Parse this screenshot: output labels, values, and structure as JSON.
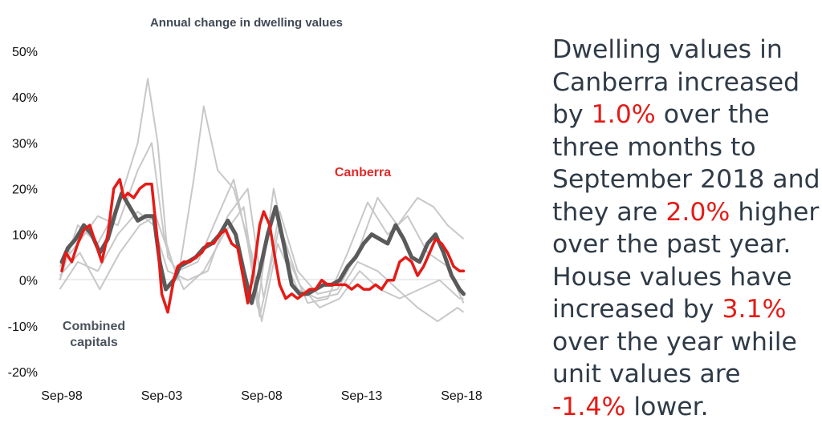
{
  "chart_data": {
    "type": "line",
    "title": "Annual change in dwelling values",
    "y_ticks": [
      "50%",
      "40%",
      "30%",
      "20%",
      "10%",
      "0%",
      "-10%",
      "-20%"
    ],
    "x_ticks": [
      "Sep-98",
      "Sep-03",
      "Sep-08",
      "Sep-13",
      "Sep-18"
    ],
    "ylim": [
      -20,
      50
    ],
    "xlim": [
      1998.5,
      2018.9
    ],
    "grid": false,
    "series_labels": {
      "canberra": "Canberra",
      "combined_1": "Combined",
      "combined_2": "capitals"
    },
    "colors": {
      "canberra": "#e41b17",
      "combined": "#5a5a5a",
      "other": "#c8c8c8"
    },
    "series": [
      {
        "key": "canberra",
        "x": [
          1998.7,
          1998.9,
          1999.2,
          1999.5,
          1999.8,
          2000.1,
          2000.4,
          2000.7,
          2001.0,
          2001.3,
          2001.6,
          2001.8,
          2002.0,
          2002.3,
          2002.6,
          2002.9,
          2003.2,
          2003.5,
          2003.7,
          2004.0,
          2004.3,
          2004.5,
          2004.8,
          2005.1,
          2005.4,
          2005.7,
          2006.0,
          2006.3,
          2006.6,
          2006.9,
          2007.2,
          2007.5,
          2007.8,
          2008.0,
          2008.3,
          2008.6,
          2008.8,
          2009.1,
          2009.4,
          2009.6,
          2009.9,
          2010.2,
          2010.5,
          2010.8,
          2011.1,
          2011.4,
          2011.7,
          2012.0,
          2012.3,
          2012.6,
          2012.9,
          2013.2,
          2013.5,
          2013.8,
          2014.1,
          2014.4,
          2014.7,
          2015.0,
          2015.3,
          2015.6,
          2015.9,
          2016.2,
          2016.5,
          2016.8,
          2017.1,
          2017.4,
          2017.7,
          2018.0,
          2018.3,
          2018.6,
          2018.8
        ],
        "y": [
          2,
          6,
          4,
          8,
          11,
          12,
          8,
          4,
          10,
          20,
          22,
          18,
          19,
          18,
          20,
          21,
          21,
          8,
          -3,
          -7,
          0,
          3,
          4,
          4,
          5,
          6,
          8,
          8,
          10,
          11,
          8,
          7,
          0,
          -5,
          2,
          12,
          15,
          12,
          4,
          -1,
          -4,
          -3,
          -4,
          -3,
          -2,
          -2,
          0,
          -1,
          -1,
          -1,
          -1,
          -2,
          -1,
          -2,
          -2,
          -1,
          -2,
          0,
          0,
          4,
          5,
          4,
          1,
          3,
          6,
          9,
          8,
          6,
          3,
          2,
          2
        ]
      },
      {
        "key": "combined",
        "x": [
          1998.7,
          1999.0,
          1999.4,
          1999.8,
          2000.2,
          2000.6,
          2001.0,
          2001.4,
          2001.7,
          2002.1,
          2002.5,
          2002.9,
          2003.3,
          2003.6,
          2003.9,
          2004.3,
          2004.6,
          2005.0,
          2005.4,
          2005.8,
          2006.2,
          2006.6,
          2007.0,
          2007.4,
          2007.8,
          2008.2,
          2008.6,
          2009.0,
          2009.4,
          2009.8,
          2010.2,
          2010.6,
          2011.0,
          2011.4,
          2011.8,
          2012.2,
          2012.6,
          2013.0,
          2013.4,
          2013.8,
          2014.2,
          2014.6,
          2015.0,
          2015.4,
          2015.8,
          2016.2,
          2016.6,
          2017.0,
          2017.4,
          2017.8,
          2018.2,
          2018.6,
          2018.8
        ],
        "y": [
          4,
          7,
          9,
          12,
          10,
          6,
          9,
          15,
          19,
          16,
          13,
          14,
          14,
          4,
          -2,
          0,
          3,
          4,
          5,
          7,
          8,
          10,
          13,
          10,
          2,
          -5,
          2,
          10,
          16,
          8,
          -1,
          -3,
          -3,
          -2,
          -1,
          -1,
          0,
          3,
          5,
          8,
          10,
          9,
          8,
          12,
          9,
          5,
          4,
          8,
          10,
          6,
          1,
          -2,
          -3
        ]
      }
    ]
  },
  "commentary": {
    "p1": "Dwelling values in Canberra increased by ",
    "v1": "1.0%",
    "p2": " over the three months to September 2018 and they are ",
    "v2": "2.0%",
    "p3": " higher over the past year. House values have increased by ",
    "v3": "3.1%",
    "p4": " over the year while unit values are ",
    "v4": "-1.4%",
    "p5": " lower."
  }
}
